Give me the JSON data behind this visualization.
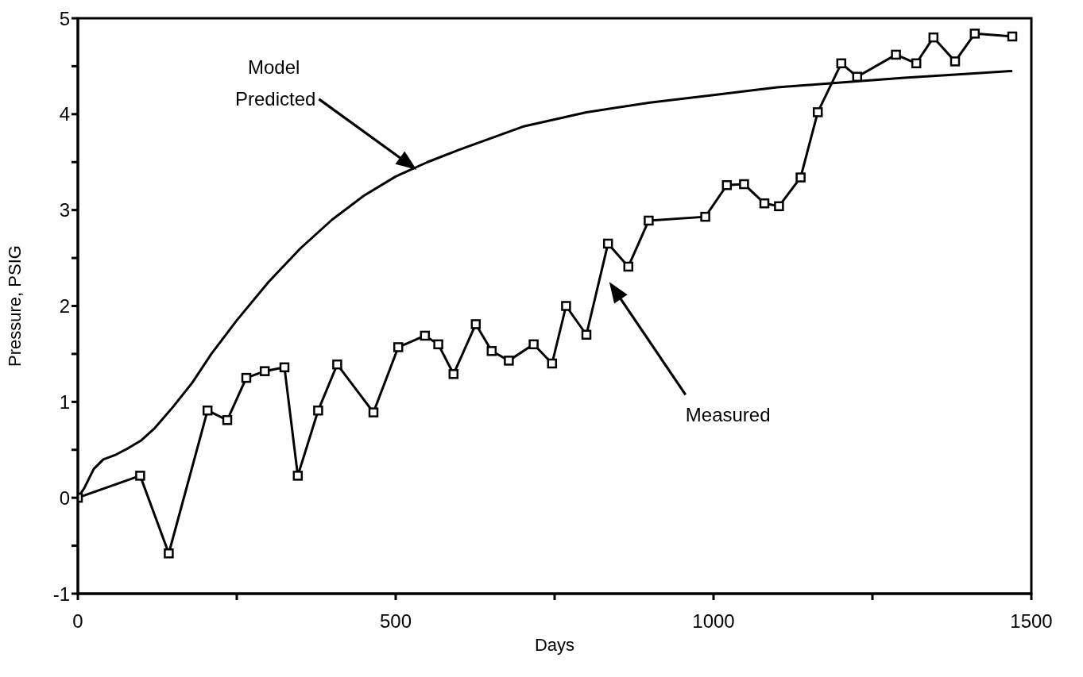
{
  "chart_data": {
    "type": "line",
    "xlabel": "Days",
    "ylabel": "Pressure,  PSIG",
    "xlim": [
      0,
      1500
    ],
    "ylim": [
      -1,
      5
    ],
    "xticks": [
      0,
      {
        "value": 250,
        "label": null
      },
      500,
      {
        "value": 750,
        "label": null
      },
      1000,
      {
        "value": 1250,
        "label": null
      },
      1500
    ],
    "yticks": [
      -1,
      {
        "value": -0.5,
        "label": null
      },
      0,
      {
        "value": 0.5,
        "label": null
      },
      1,
      {
        "value": 1.5,
        "label": null
      },
      2,
      {
        "value": 2.5,
        "label": null
      },
      3,
      {
        "value": 3.5,
        "label": null
      },
      4,
      {
        "value": 4.5,
        "label": null
      },
      5
    ],
    "line_style": "solid",
    "series": [
      {
        "color": "#000000",
        "marker": "none",
        "x": [
          0,
          10,
          25,
          40,
          60,
          80,
          100,
          120,
          150,
          180,
          210,
          250,
          300,
          350,
          400,
          450,
          500,
          550,
          600,
          700,
          800,
          900,
          1000,
          1100,
          1200,
          1300,
          1400,
          1470
        ],
        "values": [
          0,
          0.1,
          0.3,
          0.4,
          0.45,
          0.52,
          0.6,
          0.72,
          0.95,
          1.2,
          1.5,
          1.85,
          2.25,
          2.6,
          2.9,
          3.15,
          3.35,
          3.5,
          3.63,
          3.87,
          4.02,
          4.12,
          4.2,
          4.28,
          4.33,
          4.38,
          4.42,
          4.45
        ]
      },
      {
        "color": "#000000",
        "marker": "square",
        "x": [
          0,
          98,
          143,
          204,
          235,
          265,
          294,
          325,
          346,
          378,
          408,
          465,
          504,
          546,
          567,
          591,
          626,
          651,
          678,
          717,
          746,
          768,
          800,
          834,
          866,
          898,
          987,
          1021,
          1048,
          1080,
          1103,
          1137,
          1164,
          1201,
          1226,
          1287,
          1319,
          1346,
          1380,
          1411,
          1470
        ],
        "values": [
          0,
          0.23,
          -0.58,
          0.91,
          0.81,
          1.25,
          1.32,
          1.36,
          0.23,
          0.91,
          1.39,
          0.89,
          1.57,
          1.69,
          1.6,
          1.29,
          1.81,
          1.53,
          1.43,
          1.6,
          1.4,
          2.0,
          1.7,
          2.65,
          2.41,
          2.89,
          2.93,
          3.26,
          3.27,
          3.07,
          3.04,
          3.34,
          4.02,
          4.53,
          4.39,
          4.62,
          4.53,
          4.8,
          4.55,
          4.84,
          4.81
        ]
      }
    ],
    "annotations": [
      "Model\nPredicted",
      "Measured"
    ]
  }
}
